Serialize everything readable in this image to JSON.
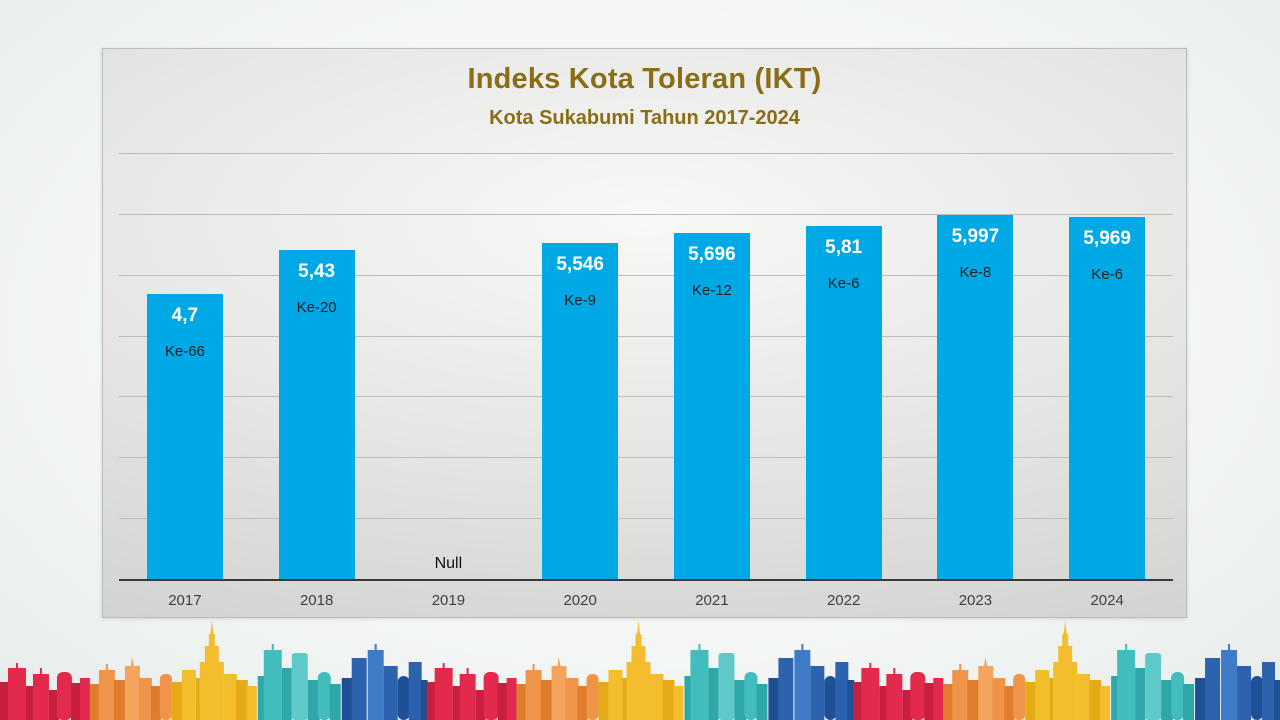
{
  "header": {
    "title": "Indeks Kota Toleran (IKT)",
    "subtitle": "Kota Sukabumi Tahun 2017-2024",
    "title_color": "#8a6d15"
  },
  "chart_data": {
    "type": "bar",
    "title": "Indeks Kota Toleran (IKT)",
    "subtitle": "Kota Sukabumi Tahun 2017-2024",
    "categories": [
      "2017",
      "2018",
      "2019",
      "2020",
      "2021",
      "2022",
      "2023",
      "2024"
    ],
    "series": [
      {
        "name": "IKT",
        "values": [
          4.7,
          5.43,
          null,
          5.546,
          5.696,
          5.81,
          5.997,
          5.969
        ]
      }
    ],
    "value_display_labels": [
      "4,7",
      "5,43",
      null,
      "5,546",
      "5,696",
      "5,81",
      "5,997",
      "5,969"
    ],
    "rank_labels": [
      "Ke-66",
      "Ke-20",
      null,
      "Ke-9",
      "Ke-12",
      "Ke-6",
      "Ke-8",
      "Ke-6"
    ],
    "null_label": "Null",
    "ylim": [
      0,
      7
    ],
    "gridline_count": 7,
    "grid_on": true,
    "legend": "none",
    "bar_color": "#00a9e6",
    "value_label_color": "#ffffff",
    "rank_label_color": "#1e1e1e",
    "axis_line_color": "#3a3a3a"
  },
  "decoration": {
    "skyline_palette": {
      "red": "#e42a4c",
      "red_dark": "#c81f40",
      "orange": "#f0944a",
      "orange_dark": "#e07c2e",
      "yellow": "#f3bd2e",
      "yellow_dark": "#e5ab17",
      "teal": "#43bcbd",
      "teal_dark": "#2fa7a8",
      "blue": "#2d63ae",
      "blue_dark": "#1f4f94",
      "blue_light": "#3f7bc6"
    }
  }
}
